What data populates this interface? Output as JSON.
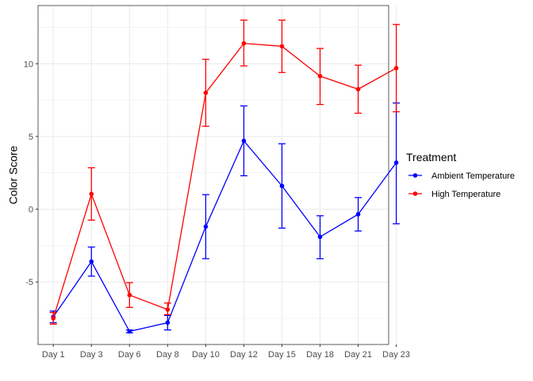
{
  "chart_data": {
    "type": "line",
    "title": "",
    "xlabel": "",
    "ylabel": "Color Score",
    "categories": [
      "Day 1",
      "Day 3",
      "Day 6",
      "Day 8",
      "Day 10",
      "Day 12",
      "Day 15",
      "Day 18",
      "Day 21",
      "Day 23"
    ],
    "ylim": [
      -9.3,
      14.0
    ],
    "yticks": [
      -5,
      0,
      5,
      10
    ],
    "grid": true,
    "legend": {
      "title": "Treatment",
      "position": "right"
    },
    "series": [
      {
        "name": "Ambient Temperature",
        "color": "#0000ff",
        "values": [
          -7.4,
          -3.6,
          -8.4,
          -7.8,
          -1.2,
          4.7,
          1.6,
          -1.9,
          -0.35,
          3.2
        ],
        "err_low": [
          -7.8,
          -4.6,
          -8.5,
          -8.3,
          -3.4,
          2.3,
          -1.3,
          -3.4,
          -1.5,
          -1.0
        ],
        "err_high": [
          -7.0,
          -2.6,
          -8.3,
          -7.3,
          1.0,
          7.1,
          4.5,
          -0.45,
          0.8,
          7.3
        ]
      },
      {
        "name": "High Temperature",
        "color": "#ff0000",
        "values": [
          -7.5,
          1.05,
          -5.9,
          -6.9,
          8.0,
          11.4,
          11.2,
          9.15,
          8.25,
          9.7
        ],
        "err_low": [
          -7.9,
          -0.75,
          -6.75,
          -7.25,
          5.7,
          9.85,
          9.4,
          7.2,
          6.6,
          6.7
        ],
        "err_high": [
          -7.1,
          2.85,
          -5.05,
          -6.45,
          10.3,
          13.0,
          13.0,
          11.05,
          9.9,
          12.7
        ]
      }
    ]
  }
}
